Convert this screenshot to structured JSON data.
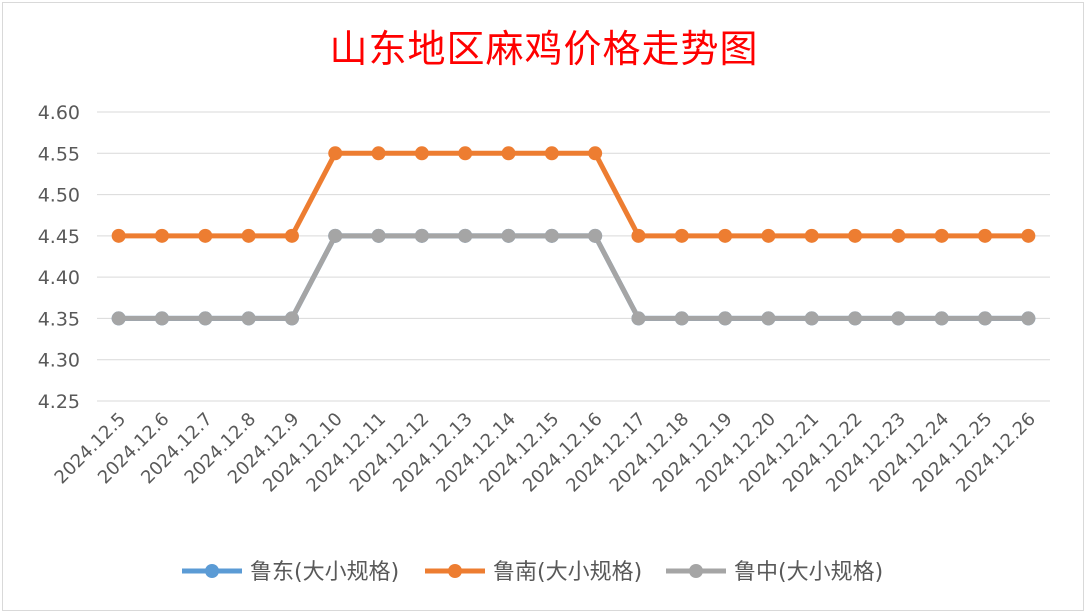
{
  "chart_data": {
    "type": "line",
    "title": "山东地区麻鸡价格走势图",
    "xlabel": "",
    "ylabel": "",
    "ylim": [
      4.25,
      4.6
    ],
    "yticks": [
      "4.60",
      "4.55",
      "4.50",
      "4.45",
      "4.40",
      "4.35",
      "4.30",
      "4.25"
    ],
    "grid": true,
    "legend_position": "bottom",
    "categories": [
      "2024.12.5",
      "2024.12.6",
      "2024.12.7",
      "2024.12.8",
      "2024.12.9",
      "2024.12.10",
      "2024.12.11",
      "2024.12.12",
      "2024.12.13",
      "2024.12.14",
      "2024.12.15",
      "2024.12.16",
      "2024.12.17",
      "2024.12.18",
      "2024.12.19",
      "2024.12.20",
      "2024.12.21",
      "2024.12.22",
      "2024.12.23",
      "2024.12.24",
      "2024.12.25",
      "2024.12.26"
    ],
    "series": [
      {
        "name": "鲁东(大小规格)",
        "color": "#5b9bd5",
        "values": [
          4.35,
          4.35,
          4.35,
          4.35,
          4.35,
          4.45,
          4.45,
          4.45,
          4.45,
          4.45,
          4.45,
          4.45,
          4.35,
          4.35,
          4.35,
          4.35,
          4.35,
          4.35,
          4.35,
          4.35,
          4.35,
          4.35
        ]
      },
      {
        "name": "鲁南(大小规格)",
        "color": "#ed7d31",
        "values": [
          4.45,
          4.45,
          4.45,
          4.45,
          4.45,
          4.55,
          4.55,
          4.55,
          4.55,
          4.55,
          4.55,
          4.55,
          4.45,
          4.45,
          4.45,
          4.45,
          4.45,
          4.45,
          4.45,
          4.45,
          4.45,
          4.45
        ]
      },
      {
        "name": "鲁中(大小规格)",
        "color": "#a5a5a5",
        "values": [
          4.35,
          4.35,
          4.35,
          4.35,
          4.35,
          4.45,
          4.45,
          4.45,
          4.45,
          4.45,
          4.45,
          4.45,
          4.35,
          4.35,
          4.35,
          4.35,
          4.35,
          4.35,
          4.35,
          4.35,
          4.35,
          4.35
        ]
      }
    ]
  }
}
